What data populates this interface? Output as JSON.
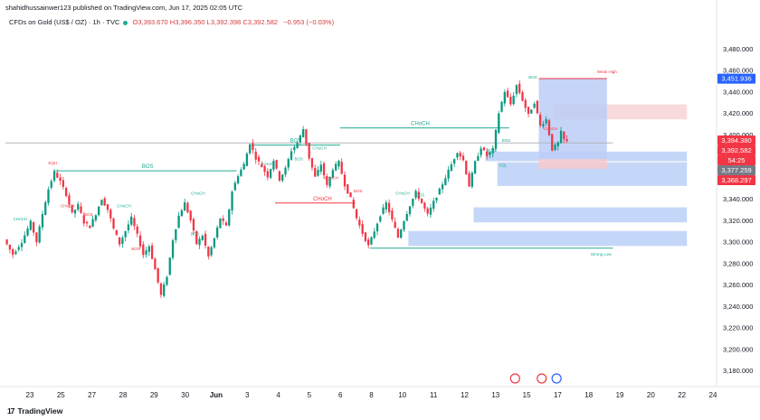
{
  "header": {
    "publisher": "shahidhussainwer123 published on TradingView.com, Jun 17, 2025 02:05 UTC",
    "symbol": "CFDs on Gold (US$ / OZ) · 1h · TVC",
    "open": "O3,393.670",
    "high": "H3,396.350",
    "low": "L3,392.398",
    "close": "C3,392.582",
    "change": "−0.953 (−0.03%)"
  },
  "footer": {
    "brand": "TradingView",
    "logo": "tv-logo"
  },
  "chart_data": {
    "type": "candlestick",
    "y_ticks": [
      3180,
      3200,
      3220,
      3240,
      3260,
      3280,
      3300,
      3320,
      3340,
      3360,
      3380,
      3400,
      3420,
      3440,
      3460,
      3480
    ],
    "ylim": [
      3170,
      3500
    ],
    "x_ticks": [
      "23",
      "25",
      "27",
      "28",
      "29",
      "30",
      "Jun",
      "3",
      "4",
      "5",
      "6",
      "8",
      "10",
      "11",
      "12",
      "13",
      "15",
      "17",
      "18",
      "19",
      "20",
      "22",
      "24"
    ],
    "path": [
      [
        0,
        3302
      ],
      [
        3,
        3288
      ],
      [
        6,
        3300
      ],
      [
        9,
        3318
      ],
      [
        11,
        3300
      ],
      [
        13,
        3326
      ],
      [
        15,
        3349
      ],
      [
        17,
        3365
      ],
      [
        19,
        3356
      ],
      [
        21,
        3344
      ],
      [
        23,
        3326
      ],
      [
        25,
        3334
      ],
      [
        27,
        3318
      ],
      [
        29,
        3314
      ],
      [
        31,
        3326
      ],
      [
        33,
        3340
      ],
      [
        35,
        3330
      ],
      [
        37,
        3312
      ],
      [
        39,
        3298
      ],
      [
        41,
        3310
      ],
      [
        43,
        3322
      ],
      [
        45,
        3306
      ],
      [
        47,
        3288
      ],
      [
        49,
        3296
      ],
      [
        51,
        3274
      ],
      [
        53,
        3250
      ],
      [
        55,
        3268
      ],
      [
        57,
        3302
      ],
      [
        59,
        3324
      ],
      [
        61,
        3336
      ],
      [
        63,
        3320
      ],
      [
        65,
        3298
      ],
      [
        67,
        3306
      ],
      [
        69,
        3286
      ],
      [
        71,
        3303
      ],
      [
        73,
        3322
      ],
      [
        75,
        3314
      ],
      [
        77,
        3347
      ],
      [
        79,
        3362
      ],
      [
        81,
        3372
      ],
      [
        83,
        3392
      ],
      [
        85,
        3378
      ],
      [
        87,
        3370
      ],
      [
        89,
        3361
      ],
      [
        91,
        3376
      ],
      [
        93,
        3358
      ],
      [
        95,
        3368
      ],
      [
        97,
        3385
      ],
      [
        99,
        3392
      ],
      [
        101,
        3405
      ],
      [
        103,
        3378
      ],
      [
        105,
        3360
      ],
      [
        107,
        3372
      ],
      [
        109,
        3352
      ],
      [
        111,
        3368
      ],
      [
        113,
        3374
      ],
      [
        115,
        3353
      ],
      [
        117,
        3340
      ],
      [
        119,
        3322
      ],
      [
        121,
        3308
      ],
      [
        123,
        3296
      ],
      [
        125,
        3310
      ],
      [
        127,
        3325
      ],
      [
        129,
        3336
      ],
      [
        131,
        3320
      ],
      [
        133,
        3304
      ],
      [
        135,
        3320
      ],
      [
        137,
        3334
      ],
      [
        139,
        3346
      ],
      [
        141,
        3336
      ],
      [
        143,
        3325
      ],
      [
        145,
        3337
      ],
      [
        147,
        3348
      ],
      [
        149,
        3360
      ],
      [
        151,
        3372
      ],
      [
        153,
        3384
      ],
      [
        155,
        3376
      ],
      [
        157,
        3352
      ],
      [
        159,
        3374
      ],
      [
        161,
        3388
      ],
      [
        163,
        3380
      ],
      [
        165,
        3386
      ],
      [
        167,
        3420
      ],
      [
        169,
        3440
      ],
      [
        171,
        3428
      ],
      [
        173,
        3446
      ],
      [
        175,
        3432
      ],
      [
        177,
        3418
      ],
      [
        179,
        3430
      ],
      [
        181,
        3408
      ],
      [
        183,
        3414
      ],
      [
        185,
        3386
      ],
      [
        187,
        3392
      ],
      [
        188,
        3402
      ],
      [
        189,
        3395
      ],
      [
        190,
        3393
      ]
    ],
    "last_index": 190,
    "price_labels": [
      {
        "value": 3451.936,
        "text": "3,451.936",
        "color": "#2962ff"
      },
      {
        "value": 3394.38,
        "text": "3,394.380",
        "color": "#f23645"
      },
      {
        "value": 3392.582,
        "text": "3,392.582",
        "color": "#f23645"
      },
      {
        "value": 3390.5,
        "text": "54:25",
        "color": "#f23645"
      },
      {
        "value": 3377.259,
        "text": "3,377.259",
        "color": "#787b86"
      },
      {
        "value": 3368.297,
        "text": "3,368.297",
        "color": "#f23645"
      }
    ],
    "zones": [
      {
        "x0": 166,
        "x1": 230,
        "y0": 3352,
        "y1": 3374,
        "color": "#bbd0f7"
      },
      {
        "x0": 162,
        "x1": 230,
        "y0": 3375,
        "y1": 3384,
        "color": "#bbd0f7"
      },
      {
        "x0": 158,
        "x1": 230,
        "y0": 3318,
        "y1": 3332,
        "color": "#bbd0f7"
      },
      {
        "x0": 136,
        "x1": 230,
        "y0": 3296,
        "y1": 3310,
        "color": "#bbd0f7"
      },
      {
        "x0": 185,
        "x1": 230,
        "y0": 3414,
        "y1": 3428,
        "color": "#f8d3d6"
      },
      {
        "x0": 180,
        "x1": 203,
        "y0": 3377,
        "y1": 3452,
        "color": "#bccdf6"
      },
      {
        "x0": 180,
        "x1": 203,
        "y0": 3368,
        "y1": 3377,
        "color": "#f8c9cd"
      }
    ],
    "structure_lines": [
      {
        "x0": 17,
        "x1": 78,
        "y": 3366,
        "color": "#22ab94",
        "label": "BOS",
        "lx": 48
      },
      {
        "x0": 83,
        "x1": 113,
        "y": 3390,
        "color": "#22ab94",
        "label": "BOS",
        "lx": 98
      },
      {
        "x0": 113,
        "x1": 170,
        "y": 3406,
        "color": "#22ab94",
        "label": "CHoCH",
        "lx": 140
      },
      {
        "x0": 91,
        "x1": 118,
        "y": 3336,
        "color": "#f23645",
        "label": "CHoCH",
        "lx": 107
      },
      {
        "x0": 123,
        "x1": 205,
        "y": 3294,
        "color": "#22ab94",
        "label": "",
        "lx": 0
      },
      {
        "x0": 0,
        "x1": 205,
        "y": 3392,
        "color": "#b2b5be",
        "label": "",
        "lx": 0
      }
    ],
    "small_labels": [
      {
        "x": 16,
        "y": 3372,
        "text": "EQH",
        "color": "#f23645"
      },
      {
        "x": 5,
        "y": 3320,
        "text": "CHoCH",
        "color": "#22ab94"
      },
      {
        "x": 21,
        "y": 3332,
        "text": "CHoCH",
        "color": "#f23645"
      },
      {
        "x": 28,
        "y": 3324,
        "text": "BOS",
        "color": "#f23645"
      },
      {
        "x": 40,
        "y": 3332,
        "text": "CHoCH",
        "color": "#22ab94"
      },
      {
        "x": 44,
        "y": 3292,
        "text": "BOS",
        "color": "#f23645"
      },
      {
        "x": 65,
        "y": 3344,
        "text": "CHoCH",
        "color": "#22ab94"
      },
      {
        "x": 64,
        "y": 3306,
        "text": "BOS",
        "color": "#22ab94"
      },
      {
        "x": 89,
        "y": 3371,
        "text": "CHoCH",
        "color": "#22ab94"
      },
      {
        "x": 99,
        "y": 3376,
        "text": "BOS",
        "color": "#22ab94"
      },
      {
        "x": 106,
        "y": 3386,
        "text": "CHoCH",
        "color": "#22ab94"
      },
      {
        "x": 110,
        "y": 3358,
        "text": "CHoCH",
        "color": "#f23645"
      },
      {
        "x": 119,
        "y": 3346,
        "text": "BOS",
        "color": "#f23645"
      },
      {
        "x": 134,
        "y": 3344,
        "text": "CHoCH",
        "color": "#22ab94"
      },
      {
        "x": 140,
        "y": 3342,
        "text": "BOS",
        "color": "#22ab94"
      },
      {
        "x": 164,
        "y": 3384,
        "text": "BOS",
        "color": "#22ab94"
      },
      {
        "x": 169,
        "y": 3393,
        "text": "BOS",
        "color": "#22ab94"
      },
      {
        "x": 168,
        "y": 3370,
        "text": "EQL",
        "color": "#22ab94"
      },
      {
        "x": 178,
        "y": 3452,
        "text": "BOS",
        "color": "#22ab94"
      },
      {
        "x": 184,
        "y": 3404,
        "text": "CHoCH",
        "color": "#f23645"
      },
      {
        "x": 203,
        "y": 3457,
        "text": "Weak High",
        "color": "#f23645"
      },
      {
        "x": 201,
        "y": 3287,
        "text": "Strong Low",
        "color": "#22ab94"
      }
    ]
  }
}
